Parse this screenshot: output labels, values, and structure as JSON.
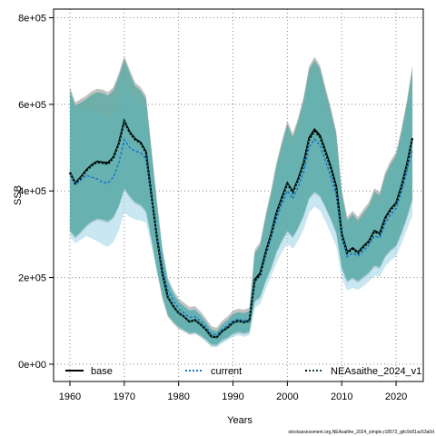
{
  "chart_data": {
    "type": "line",
    "title": "",
    "xlabel": "Years",
    "ylabel": "SSB",
    "xlim": [
      1957,
      2025
    ],
    "ylim": [
      -40000,
      820000
    ],
    "x_ticks": [
      1960,
      1970,
      1980,
      1990,
      2000,
      2010,
      2020
    ],
    "x_tick_labels": [
      "1960",
      "1970",
      "1980",
      "1990",
      "2000",
      "2010",
      "2020"
    ],
    "y_ticks": [
      0,
      200000,
      400000,
      600000,
      800000
    ],
    "y_tick_labels": [
      "0e+00",
      "2e+05",
      "4e+05",
      "6e+05",
      "8e+05"
    ],
    "grid": true,
    "legend_position": "bottom",
    "legend": [
      "base",
      "current",
      "NEAsaithe_2024_v1"
    ],
    "credit": "stockassessment.org,NEAsaithe_2024_simple,r18572_gitc9c81ac53a0d",
    "x": [
      1960,
      1961,
      1962,
      1963,
      1964,
      1965,
      1966,
      1967,
      1968,
      1969,
      1970,
      1971,
      1972,
      1973,
      1974,
      1975,
      1976,
      1977,
      1978,
      1979,
      1980,
      1981,
      1982,
      1983,
      1984,
      1985,
      1986,
      1987,
      1988,
      1989,
      1990,
      1991,
      1992,
      1993,
      1994,
      1995,
      1996,
      1997,
      1998,
      1999,
      2000,
      2001,
      2002,
      2003,
      2004,
      2005,
      2006,
      2007,
      2008,
      2009,
      2010,
      2011,
      2012,
      2013,
      2014,
      2015,
      2016,
      2017,
      2018,
      2019,
      2020,
      2021,
      2022,
      2023
    ],
    "series": [
      {
        "name": "base",
        "color": "#000000",
        "values": [
          443000,
          418000,
          432000,
          448000,
          460000,
          468000,
          466000,
          465000,
          478000,
          510000,
          562000,
          536000,
          520000,
          512000,
          490000,
          390000,
          295000,
          210000,
          155000,
          134000,
          118000,
          110000,
          98000,
          102000,
          92000,
          80000,
          64000,
          62000,
          76000,
          84000,
          96000,
          100000,
          97000,
          100000,
          195000,
          210000,
          258000,
          300000,
          350000,
          385000,
          418000,
          398000,
          428000,
          465000,
          522000,
          542000,
          528000,
          492000,
          455000,
          410000,
          302000,
          258000,
          268000,
          258000,
          272000,
          284000,
          308000,
          302000,
          338000,
          358000,
          372000,
          412000,
          462000,
          522000
        ],
        "upper": [
          640000,
          605000,
          612000,
          620000,
          630000,
          636000,
          634000,
          628000,
          640000,
          672000,
          712000,
          680000,
          650000,
          640000,
          620000,
          500000,
          380000,
          270000,
          200000,
          172000,
          152000,
          142000,
          132000,
          134000,
          122000,
          106000,
          88000,
          84000,
          100000,
          110000,
          124000,
          128000,
          126000,
          130000,
          264000,
          282000,
          346000,
          402000,
          466000,
          516000,
          562000,
          532000,
          570000,
          618000,
          688000,
          710000,
          690000,
          640000,
          592000,
          538000,
          404000,
          340000,
          354000,
          340000,
          358000,
          374000,
          406000,
          398000,
          444000,
          470000,
          490000,
          545000,
          610000,
          690000
        ],
        "lower": [
          305000,
          290000,
          302000,
          316000,
          326000,
          332000,
          330000,
          326000,
          336000,
          362000,
          402000,
          384000,
          370000,
          364000,
          350000,
          285000,
          215000,
          152000,
          110000,
          94000,
          82000,
          75000,
          68000,
          70000,
          63000,
          54000,
          42000,
          41000,
          52000,
          58000,
          67000,
          71000,
          68000,
          71000,
          142000,
          152000,
          188000,
          218000,
          256000,
          282000,
          304000,
          290000,
          312000,
          340000,
          380000,
          394000,
          385000,
          360000,
          332000,
          300000,
          220000,
          188000,
          196000,
          188000,
          198000,
          208000,
          224000,
          220000,
          246000,
          260000,
          270000,
          300000,
          336000,
          378000
        ]
      },
      {
        "name": "current",
        "color": "#1874cd",
        "values": [
          440000,
          415000,
          425000,
          436000,
          432000,
          428000,
          420000,
          418000,
          432000,
          465000,
          518000,
          500000,
          492000,
          488000,
          475000,
          385000,
          300000,
          224000,
          170000,
          148000,
          128000,
          118000,
          108000,
          110000,
          100000,
          86000,
          70000,
          68000,
          80000,
          90000,
          100000,
          104000,
          100000,
          104000,
          190000,
          205000,
          250000,
          292000,
          336000,
          370000,
          400000,
          382000,
          410000,
          444000,
          500000,
          520000,
          506000,
          470000,
          432000,
          390000,
          290000,
          248000,
          256000,
          250000,
          262000,
          275000,
          296000,
          292000,
          326000,
          345000,
          360000,
          398000,
          445000,
          495000
        ]
      },
      {
        "name": "NEAsaithe_2024_v1",
        "color": "#2a9d8f",
        "values": [
          442000,
          417000,
          430000,
          446000,
          458000,
          466000,
          464000,
          462000,
          476000,
          508000,
          560000,
          534000,
          518000,
          510000,
          488000,
          388000,
          294000,
          210000,
          155000,
          134000,
          118000,
          110000,
          98000,
          102000,
          92000,
          80000,
          64000,
          62000,
          76000,
          84000,
          96000,
          100000,
          97000,
          100000,
          192000,
          206000,
          256000,
          298000,
          348000,
          382000,
          416000,
          396000,
          426000,
          462000,
          518000,
          538000,
          524000,
          488000,
          451000,
          406000,
          300000,
          256000,
          266000,
          256000,
          270000,
          282000,
          306000,
          300000,
          336000,
          356000,
          370000,
          410000,
          460000,
          520000
        ]
      }
    ]
  }
}
